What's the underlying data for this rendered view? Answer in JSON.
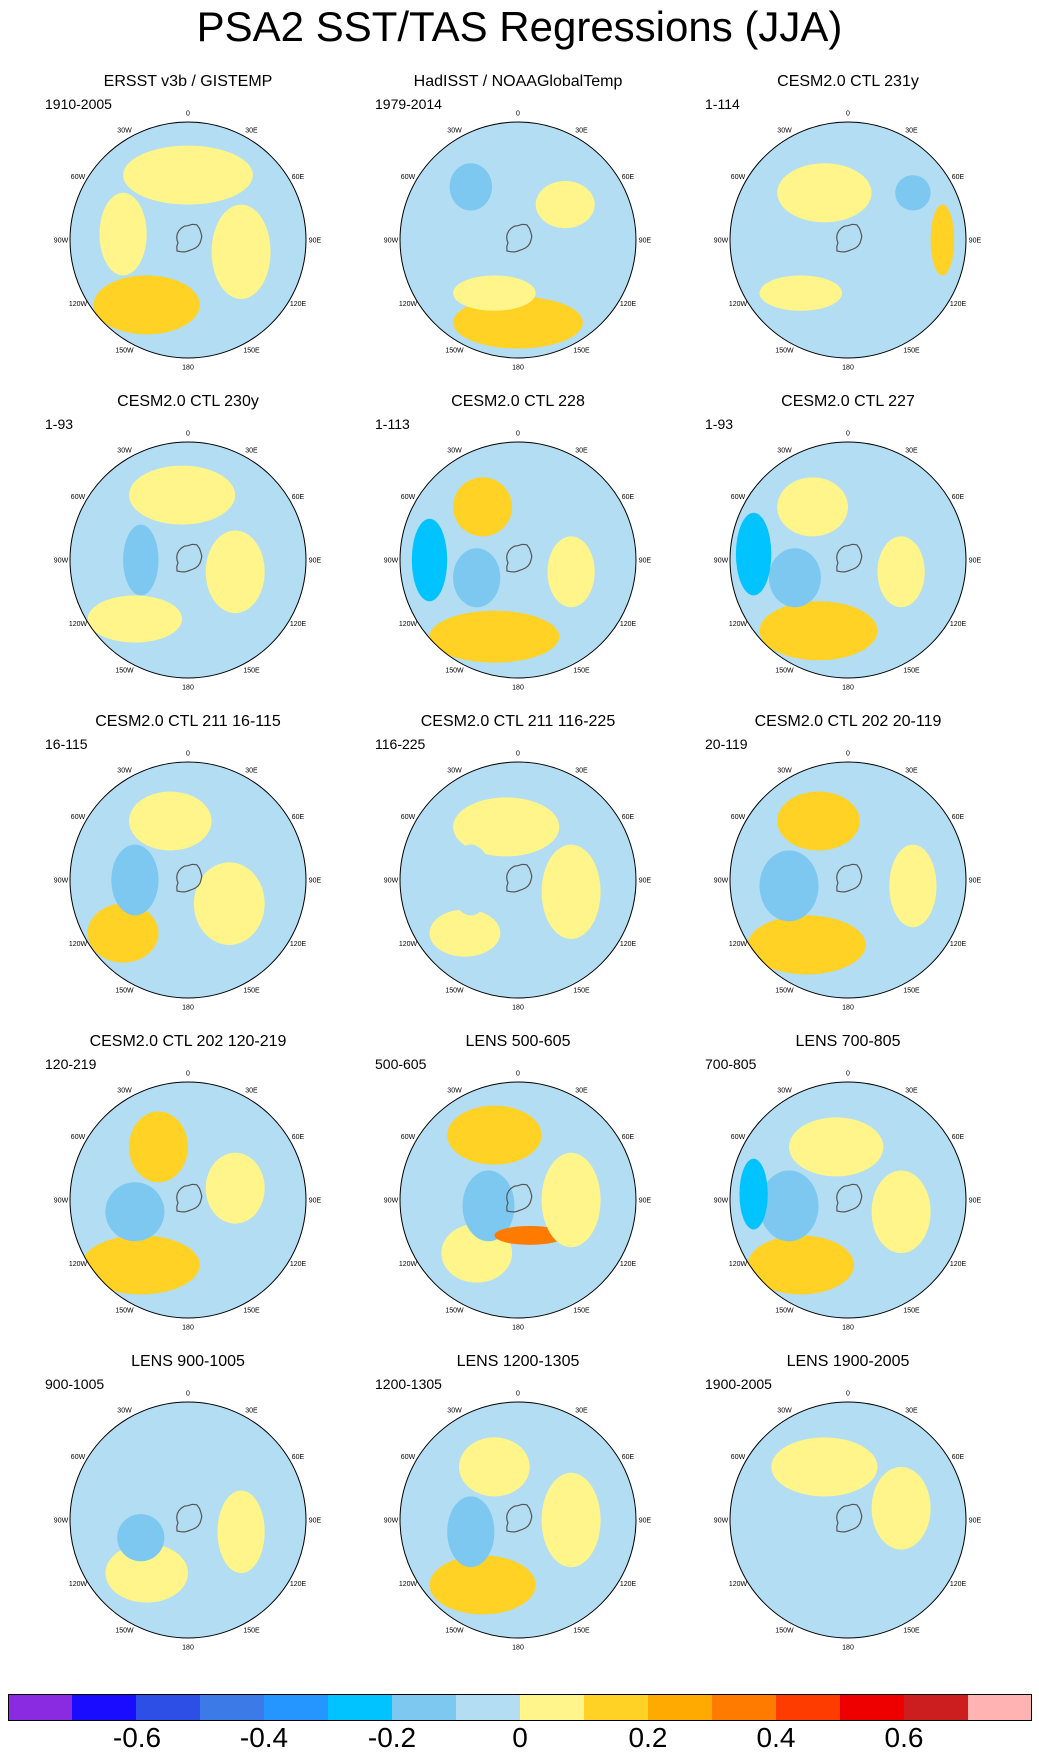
{
  "title": "PSA2 SST/TAS Regressions (JJA)",
  "panels": [
    {
      "title": "ERSST v3b / GISTEMP",
      "period": "1910-2005"
    },
    {
      "title": "HadISST / NOAAGlobalTemp",
      "period": "1979-2014"
    },
    {
      "title": "CESM2.0 CTL 231y",
      "period": "1-114"
    },
    {
      "title": "CESM2.0 CTL 230y",
      "period": "1-93"
    },
    {
      "title": "CESM2.0 CTL 228",
      "period": "1-113"
    },
    {
      "title": "CESM2.0 CTL 227",
      "period": "1-93"
    },
    {
      "title": "CESM2.0 CTL 211 16-115",
      "period": "16-115"
    },
    {
      "title": "CESM2.0 CTL 211 116-225",
      "period": "116-225"
    },
    {
      "title": "CESM2.0 CTL 202 20-119",
      "period": "20-119"
    },
    {
      "title": "CESM2.0 CTL 202 120-219",
      "period": "120-219"
    },
    {
      "title": "LENS 500-605",
      "period": "500-605"
    },
    {
      "title": "LENS 700-805",
      "period": "700-805"
    },
    {
      "title": "LENS 900-1005",
      "period": "900-1005"
    },
    {
      "title": "LENS 1200-1305",
      "period": "1200-1305"
    },
    {
      "title": "LENS 1900-2005",
      "period": "1900-2005"
    }
  ],
  "longitude_labels": [
    "0",
    "30E",
    "60E",
    "90E",
    "120E",
    "150E",
    "180",
    "150W",
    "120W",
    "90W",
    "60W",
    "30W"
  ],
  "colorbar": {
    "colors": [
      "#8a2be2",
      "#1a0dff",
      "#2d4fe6",
      "#3c7ae8",
      "#2596ff",
      "#00c3ff",
      "#7dc8f0",
      "#b3ddf2",
      "#fff58a",
      "#ffd225",
      "#ffaa00",
      "#ff7b00",
      "#ff3c00",
      "#ee0000",
      "#cc1e1e",
      "#ffb3b3"
    ],
    "labels": [
      "-0.6",
      "-0.4",
      "-0.2",
      "0",
      "0.2",
      "0.4",
      "0.6"
    ]
  }
}
